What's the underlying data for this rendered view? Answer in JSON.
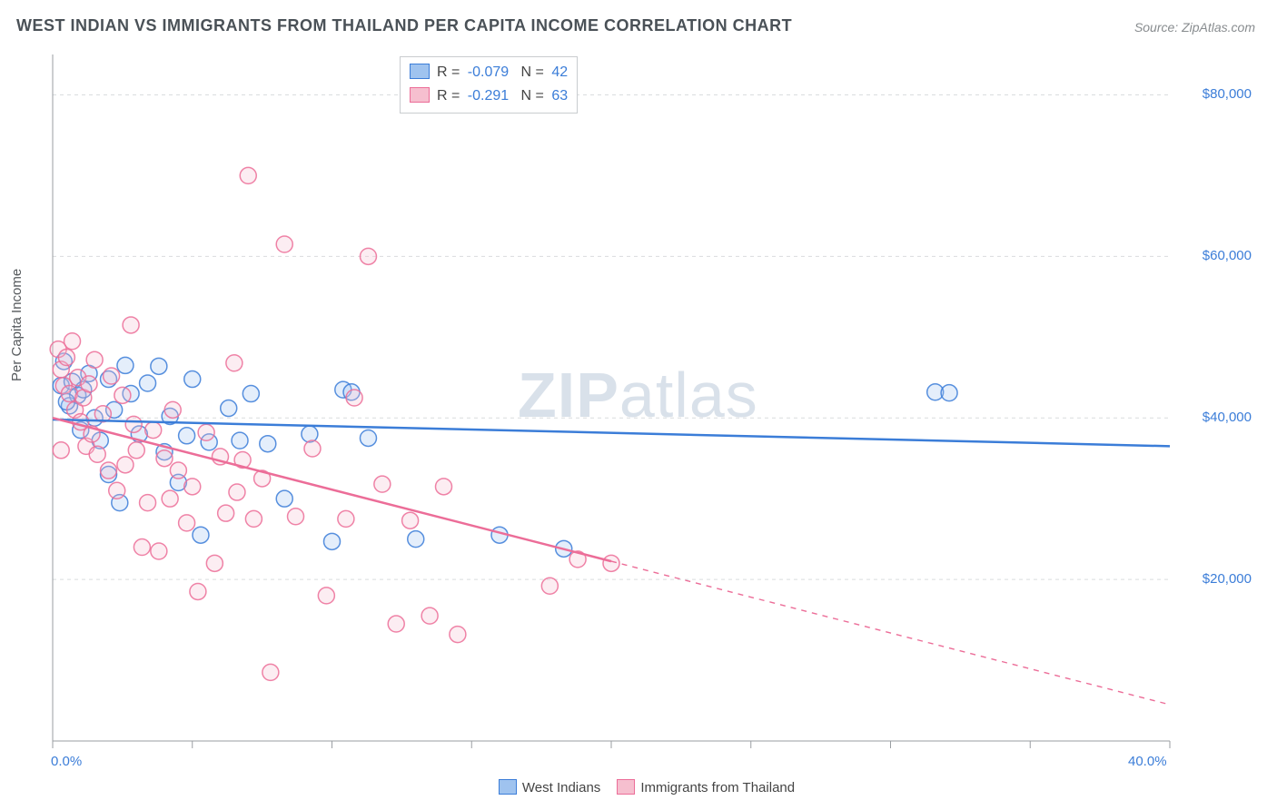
{
  "title": "WEST INDIAN VS IMMIGRANTS FROM THAILAND PER CAPITA INCOME CORRELATION CHART",
  "source": "Source: ZipAtlas.com",
  "ylabel": "Per Capita Income",
  "watermark_a": "ZIP",
  "watermark_b": "atlas",
  "chart": {
    "type": "scatter-with-regression",
    "background_color": "#ffffff",
    "grid_color": "#d9dcde",
    "grid_dash": "4 4",
    "axis_color": "#9a9ea2",
    "tick_color": "#9a9ea2",
    "xlim": [
      0,
      40
    ],
    "ylim": [
      0,
      85000
    ],
    "x_ticks_labeled": [
      {
        "v": 0,
        "label": "0.0%"
      },
      {
        "v": 40,
        "label": "40.0%"
      }
    ],
    "x_ticks_minor": [
      5,
      10,
      15,
      20,
      25,
      30,
      35
    ],
    "y_ticks": [
      {
        "v": 20000,
        "label": "$20,000"
      },
      {
        "v": 40000,
        "label": "$40,000"
      },
      {
        "v": 60000,
        "label": "$60,000"
      },
      {
        "v": 80000,
        "label": "$80,000"
      }
    ],
    "y_label_fontsize": 15,
    "tick_label_color": "#3b7dd8",
    "marker_radius": 9,
    "marker_fill_opacity": 0.28,
    "marker_stroke_width": 1.5,
    "line_width": 2.5,
    "series": [
      {
        "name": "West Indians",
        "color_fill": "#9fc3ef",
        "color_stroke": "#3b7dd8",
        "R": "-0.079",
        "N": "42",
        "regression": {
          "x1": 0,
          "y1": 39800,
          "x2": 40,
          "y2": 36500,
          "solid_to_x": 40
        },
        "points": [
          [
            0.3,
            44000
          ],
          [
            0.4,
            47000
          ],
          [
            0.6,
            41500
          ],
          [
            0.7,
            44500
          ],
          [
            0.9,
            42800
          ],
          [
            1.0,
            38500
          ],
          [
            1.1,
            43500
          ],
          [
            1.3,
            45500
          ],
          [
            1.5,
            40000
          ],
          [
            1.7,
            37200
          ],
          [
            2.0,
            44800
          ],
          [
            2.0,
            33000
          ],
          [
            2.2,
            41000
          ],
          [
            2.4,
            29500
          ],
          [
            2.6,
            46500
          ],
          [
            2.8,
            43000
          ],
          [
            3.1,
            38000
          ],
          [
            3.4,
            44300
          ],
          [
            3.8,
            46400
          ],
          [
            4.0,
            35800
          ],
          [
            4.2,
            40200
          ],
          [
            4.5,
            32000
          ],
          [
            4.8,
            37800
          ],
          [
            5.0,
            44800
          ],
          [
            5.3,
            25500
          ],
          [
            5.6,
            37000
          ],
          [
            6.3,
            41200
          ],
          [
            6.7,
            37200
          ],
          [
            7.1,
            43000
          ],
          [
            7.7,
            36800
          ],
          [
            8.3,
            30000
          ],
          [
            9.2,
            38000
          ],
          [
            10.0,
            24700
          ],
          [
            10.4,
            43500
          ],
          [
            10.7,
            43200
          ],
          [
            11.3,
            37500
          ],
          [
            13.0,
            25000
          ],
          [
            16.0,
            25500
          ],
          [
            18.3,
            23800
          ],
          [
            31.6,
            43200
          ],
          [
            32.1,
            43100
          ],
          [
            0.5,
            42000
          ]
        ]
      },
      {
        "name": "Immigrants from Thailand",
        "color_fill": "#f6bfcf",
        "color_stroke": "#ec6d98",
        "R": "-0.291",
        "N": "63",
        "regression": {
          "x1": 0,
          "y1": 40000,
          "x2": 40,
          "y2": 4500,
          "solid_to_x": 20
        },
        "points": [
          [
            0.2,
            48500
          ],
          [
            0.3,
            46000
          ],
          [
            0.4,
            44000
          ],
          [
            0.5,
            47500
          ],
          [
            0.6,
            43000
          ],
          [
            0.7,
            49500
          ],
          [
            0.8,
            41000
          ],
          [
            0.9,
            45000
          ],
          [
            1.0,
            39500
          ],
          [
            1.1,
            42500
          ],
          [
            1.2,
            36500
          ],
          [
            1.3,
            44200
          ],
          [
            1.4,
            38000
          ],
          [
            1.6,
            35500
          ],
          [
            1.8,
            40500
          ],
          [
            2.0,
            33500
          ],
          [
            2.1,
            45200
          ],
          [
            2.3,
            31000
          ],
          [
            2.5,
            42800
          ],
          [
            2.6,
            34200
          ],
          [
            2.8,
            51500
          ],
          [
            3.0,
            36000
          ],
          [
            3.2,
            24000
          ],
          [
            3.4,
            29500
          ],
          [
            3.6,
            38500
          ],
          [
            3.8,
            23500
          ],
          [
            4.0,
            35000
          ],
          [
            4.2,
            30000
          ],
          [
            4.5,
            33500
          ],
          [
            4.8,
            27000
          ],
          [
            5.0,
            31500
          ],
          [
            5.2,
            18500
          ],
          [
            5.5,
            38200
          ],
          [
            5.8,
            22000
          ],
          [
            6.0,
            35200
          ],
          [
            6.2,
            28200
          ],
          [
            6.5,
            46800
          ],
          [
            6.8,
            34800
          ],
          [
            7.0,
            70000
          ],
          [
            7.2,
            27500
          ],
          [
            7.5,
            32500
          ],
          [
            7.8,
            8500
          ],
          [
            8.3,
            61500
          ],
          [
            8.7,
            27800
          ],
          [
            9.3,
            36200
          ],
          [
            9.8,
            18000
          ],
          [
            10.5,
            27500
          ],
          [
            10.8,
            42500
          ],
          [
            11.3,
            60000
          ],
          [
            11.8,
            31800
          ],
          [
            12.3,
            14500
          ],
          [
            12.8,
            27300
          ],
          [
            13.5,
            15500
          ],
          [
            14.0,
            31500
          ],
          [
            14.5,
            13200
          ],
          [
            17.8,
            19200
          ],
          [
            18.8,
            22500
          ],
          [
            20.0,
            22000
          ],
          [
            0.3,
            36000
          ],
          [
            1.5,
            47200
          ],
          [
            2.9,
            39200
          ],
          [
            4.3,
            41000
          ],
          [
            6.6,
            30800
          ]
        ]
      }
    ]
  },
  "bottom_legend": [
    {
      "label": "West Indians",
      "fill": "#9fc3ef",
      "stroke": "#3b7dd8"
    },
    {
      "label": "Immigrants from Thailand",
      "fill": "#f6bfcf",
      "stroke": "#ec6d98"
    }
  ]
}
